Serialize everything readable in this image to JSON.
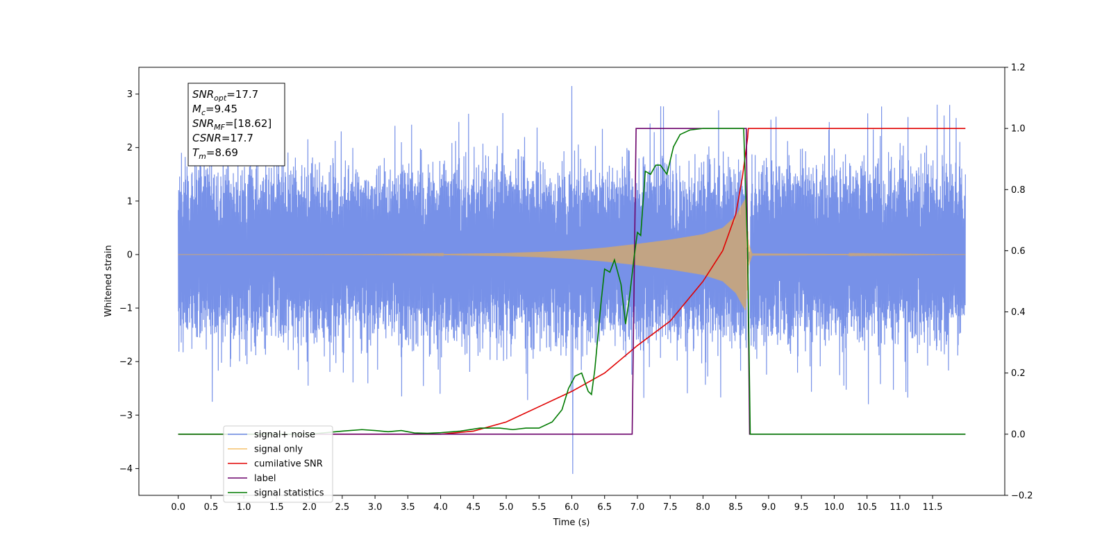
{
  "chart_data": {
    "type": "line",
    "xlabel": "Time (s)",
    "ylabel_left": "Whitened strain",
    "ylabel_right": "",
    "xlim": [
      -0.6,
      12.6
    ],
    "ylim_left": [
      -4.5,
      3.5
    ],
    "ylim_right": [
      -0.2,
      1.2
    ],
    "x_ticks": [
      0.0,
      0.5,
      1.0,
      1.5,
      2.0,
      2.5,
      3.0,
      3.5,
      4.0,
      4.5,
      5.0,
      5.5,
      6.0,
      6.5,
      7.0,
      7.5,
      8.0,
      8.5,
      9.0,
      9.5,
      10.0,
      10.5,
      11.0,
      11.5
    ],
    "x_tick_labels": [
      "0.0",
      "0.5",
      "1.0",
      "1.5",
      "2.0",
      "2.5",
      "3.0",
      "3.5",
      "4.0",
      "4.5",
      "5.0",
      "5.5",
      "6.0",
      "6.5",
      "7.0",
      "7.5",
      "8.0",
      "8.5",
      "9.0",
      "9.5",
      "10.0",
      "10.5",
      "11.0",
      "11.5"
    ],
    "y_ticks_left": [
      -4,
      -3,
      -2,
      -1,
      0,
      1,
      2,
      3
    ],
    "y_tick_labels_left": [
      "−4",
      "−3",
      "−2",
      "−1",
      "0",
      "1",
      "2",
      "3"
    ],
    "y_ticks_right": [
      -0.2,
      0.0,
      0.2,
      0.4,
      0.6,
      0.8,
      1.0,
      1.2
    ],
    "y_tick_labels_right": [
      "−0.2",
      "0.0",
      "0.2",
      "0.4",
      "0.6",
      "0.8",
      "1.0",
      "1.2"
    ],
    "grid": false,
    "legend_position": "lower-left",
    "annotation": {
      "lines": [
        {
          "sym": "SNR",
          "sub": "opt",
          "value": "=17.7"
        },
        {
          "sym": "M",
          "sub": "c",
          "value": "=9.45"
        },
        {
          "sym": "SNR",
          "sub": "MF",
          "value": "=[18.62]"
        },
        {
          "sym": "CSNR",
          "sub": "",
          "value": "=17.7"
        },
        {
          "sym": "T",
          "sub": "m",
          "value": "=8.69"
        }
      ]
    },
    "series": [
      {
        "name": "signal+ noise",
        "axis": "left",
        "color": "#6b88e6",
        "x_start": 0.0,
        "x_end": 12.0,
        "noise_band_typical": 1.3,
        "noise_extreme_max": 3.15,
        "noise_extreme_min": -4.1,
        "dropout_x": [
          8.66,
          8.72
        ]
      },
      {
        "name": "signal only",
        "axis": "left",
        "color": "#f5b041",
        "x_start": 0.0,
        "x_end": 12.0,
        "chirp_envelope": {
          "x": [
            0.0,
            3.0,
            4.0,
            5.0,
            5.5,
            6.0,
            6.5,
            7.0,
            7.5,
            8.0,
            8.3,
            8.5,
            8.6,
            8.65,
            8.7,
            8.75,
            12.0
          ],
          "amp": [
            0.0,
            0.003,
            0.01,
            0.03,
            0.05,
            0.08,
            0.13,
            0.2,
            0.28,
            0.38,
            0.5,
            0.72,
            0.95,
            1.05,
            0.2,
            0.02,
            0.0
          ]
        }
      },
      {
        "name": "cumilative SNR",
        "axis": "right",
        "color": "#e00000",
        "x": [
          0.0,
          4.0,
          4.5,
          5.0,
          5.5,
          6.0,
          6.5,
          7.0,
          7.5,
          8.0,
          8.3,
          8.5,
          8.6,
          8.65,
          8.68,
          8.69,
          12.0
        ],
        "y": [
          0.0,
          0.0,
          0.01,
          0.04,
          0.09,
          0.14,
          0.2,
          0.29,
          0.37,
          0.5,
          0.6,
          0.72,
          0.84,
          0.92,
          0.97,
          1.0,
          1.0
        ]
      },
      {
        "name": "label",
        "axis": "right",
        "color": "#6a006a",
        "x": [
          0.0,
          6.92,
          6.98,
          8.66,
          8.71,
          12.0
        ],
        "y": [
          0.0,
          0.0,
          1.0,
          1.0,
          0.0,
          0.0
        ]
      },
      {
        "name": "signal statistics",
        "axis": "right",
        "color": "#007a00",
        "x": [
          0.0,
          2.0,
          2.5,
          2.8,
          3.0,
          3.2,
          3.4,
          3.6,
          3.8,
          4.0,
          4.3,
          4.6,
          4.9,
          5.1,
          5.3,
          5.5,
          5.7,
          5.85,
          5.95,
          6.05,
          6.15,
          6.25,
          6.3,
          6.35,
          6.45,
          6.5,
          6.58,
          6.65,
          6.75,
          6.82,
          6.88,
          6.95,
          7.0,
          7.05,
          7.12,
          7.2,
          7.28,
          7.35,
          7.45,
          7.55,
          7.65,
          7.8,
          8.0,
          8.3,
          8.62,
          8.68,
          8.72,
          8.76,
          12.0
        ],
        "y": [
          0.0,
          0.0,
          0.01,
          0.015,
          0.012,
          0.008,
          0.012,
          0.004,
          0.003,
          0.005,
          0.01,
          0.02,
          0.02,
          0.015,
          0.02,
          0.02,
          0.04,
          0.08,
          0.15,
          0.19,
          0.2,
          0.14,
          0.13,
          0.21,
          0.44,
          0.54,
          0.53,
          0.57,
          0.49,
          0.36,
          0.45,
          0.58,
          0.66,
          0.65,
          0.86,
          0.85,
          0.88,
          0.88,
          0.85,
          0.94,
          0.98,
          0.995,
          1.0,
          1.0,
          1.0,
          0.6,
          0.0,
          0.0,
          0.0
        ]
      }
    ],
    "legend": {
      "items": [
        {
          "label": "signal+ noise",
          "color": "#6b88e6"
        },
        {
          "label": "signal only",
          "color": "#f5c06a"
        },
        {
          "label": "cumilative SNR",
          "color": "#e00000"
        },
        {
          "label": "label",
          "color": "#6a006a"
        },
        {
          "label": "signal statistics",
          "color": "#007a00"
        }
      ]
    }
  }
}
